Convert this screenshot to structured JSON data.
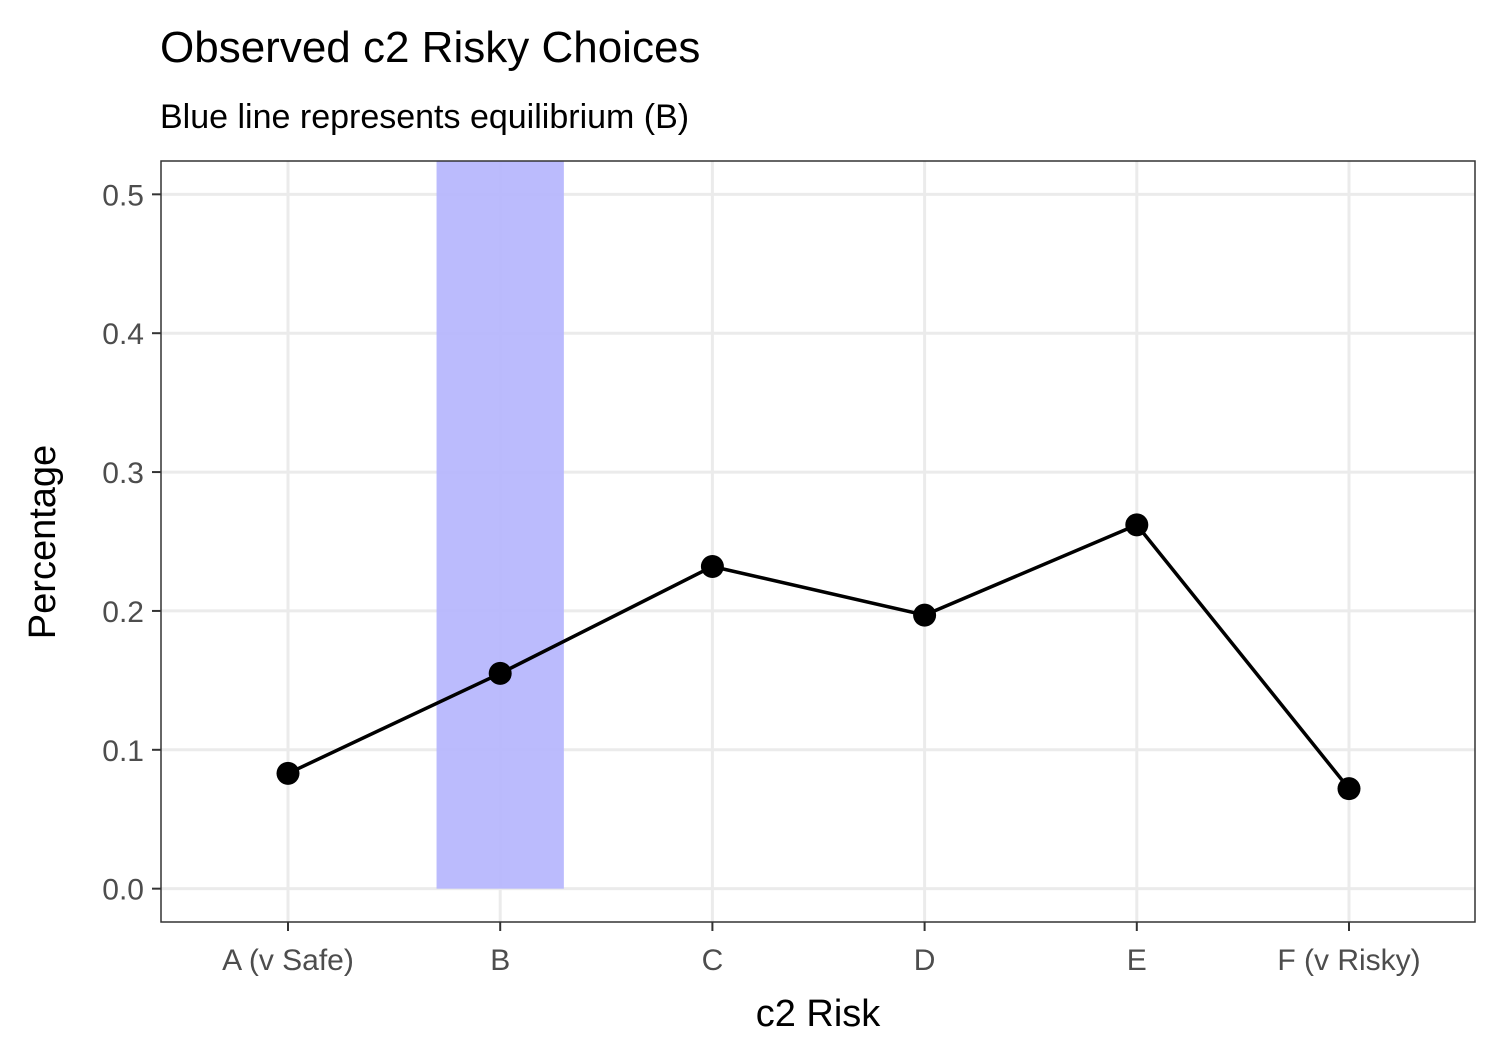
{
  "chart_data": {
    "type": "line",
    "title": "Observed c2 Risky Choices",
    "subtitle": "Blue line represents equilibrium (B)",
    "xlabel": "c2 Risk",
    "ylabel": "Percentage",
    "categories": [
      "A (v Safe)",
      "B",
      "C",
      "D",
      "E",
      "F (v Risky)"
    ],
    "values": [
      0.083,
      0.155,
      0.232,
      0.197,
      0.262,
      0.072
    ],
    "y_ticks": [
      "0.0",
      "0.1",
      "0.2",
      "0.3",
      "0.4",
      "0.5"
    ],
    "ylim": [
      -0.024,
      0.524
    ],
    "highlight_category": "B",
    "highlight_value": 0.524,
    "grid": true,
    "colors": {
      "line": "#000000",
      "point": "#000000",
      "highlight": "#b7b7fd",
      "grid": "#ebebeb",
      "panel_border": "#333333"
    }
  }
}
